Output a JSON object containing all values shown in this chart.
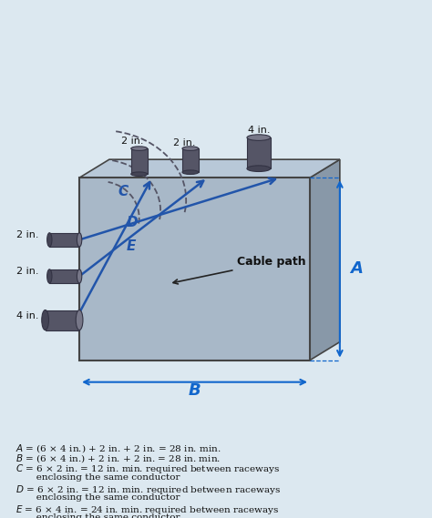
{
  "bg_color": "#dce8f0",
  "box_face_color": "#a8b8c8",
  "box_top_color": "#b8c8d8",
  "box_right_color": "#8898a8",
  "box_outline_color": "#444444",
  "arrow_color": "#2255aa",
  "dim_arrow_color": "#1166cc",
  "conduit_color": "#555566",
  "title_text": "",
  "formula_lines": [
    "A = (6 × 4 in.) + 2 in. + 2 in. = 28 in. min.",
    "B = (6 × 4 in.) + 2 in. + 2 in. = 28 in. min.",
    "C = 6 × 2 in. = 12 in. min. required between raceways",
    "    enclosing the same conductor",
    "D = 6 × 2 in. = 12 in. min. required between raceways",
    "    enclosing the same conductor",
    "E = 6 × 4 in. = 24 in. min. required between raceways",
    "    enclosing the same conductor"
  ],
  "top_conduit_labels": [
    "2 in.",
    "2 in.",
    "4 in."
  ],
  "left_conduit_labels": [
    "2 in.",
    "2 in.",
    "4 in."
  ],
  "path_labels": [
    "C",
    "D",
    "E"
  ],
  "dim_labels": [
    "A",
    "B"
  ],
  "cable_path_label": "Cable path"
}
